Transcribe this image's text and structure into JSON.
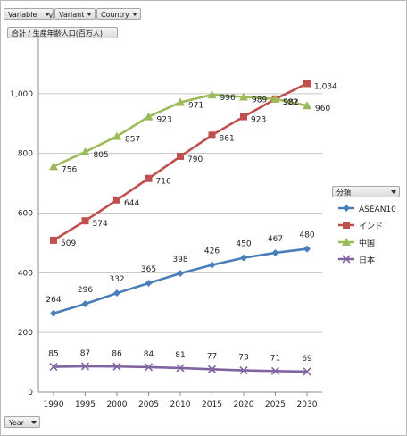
{
  "fields": {
    "variable": "Variable",
    "variant": "Variant",
    "country": "Country",
    "measure": "合計 / 生産年齢人口(百万人)",
    "year": "Year",
    "legend_title": "分類"
  },
  "chart_data": {
    "type": "line",
    "x": [
      1990,
      1995,
      2000,
      2005,
      2010,
      2015,
      2020,
      2025,
      2030
    ],
    "ylim": [
      0,
      1200
    ],
    "yticks": [
      0,
      200,
      400,
      600,
      800,
      1000
    ],
    "ytick_labels": [
      "0",
      "200",
      "400",
      "600",
      "800",
      "1,000"
    ],
    "grid": true,
    "legend": "right",
    "series": [
      {
        "name": "ASEAN10",
        "values": [
          264,
          296,
          332,
          365,
          398,
          426,
          450,
          467,
          480
        ],
        "labels": [
          "264",
          "296",
          "332",
          "365",
          "398",
          "426",
          "450",
          "467",
          "480"
        ],
        "color": "#4a7ebb",
        "marker": "diamond"
      },
      {
        "name": "インド",
        "values": [
          509,
          574,
          644,
          716,
          790,
          861,
          923,
          982,
          1034
        ],
        "labels": [
          "509",
          "574",
          "644",
          "716",
          "790",
          "861",
          "923",
          "982",
          "1,034"
        ],
        "color": "#c0504d",
        "marker": "square"
      },
      {
        "name": "中国",
        "values": [
          756,
          805,
          857,
          923,
          971,
          996,
          989,
          982,
          960
        ],
        "labels": [
          "756",
          "805",
          "857",
          "923",
          "971",
          "996",
          "989",
          "982",
          "960"
        ],
        "color": "#9bbb59",
        "marker": "triangle"
      },
      {
        "name": "日本",
        "values": [
          85,
          87,
          86,
          84,
          81,
          77,
          73,
          71,
          69
        ],
        "labels": [
          "85",
          "87",
          "86",
          "84",
          "81",
          "77",
          "73",
          "71",
          "69"
        ],
        "color": "#8064a2",
        "marker": "x"
      }
    ]
  }
}
